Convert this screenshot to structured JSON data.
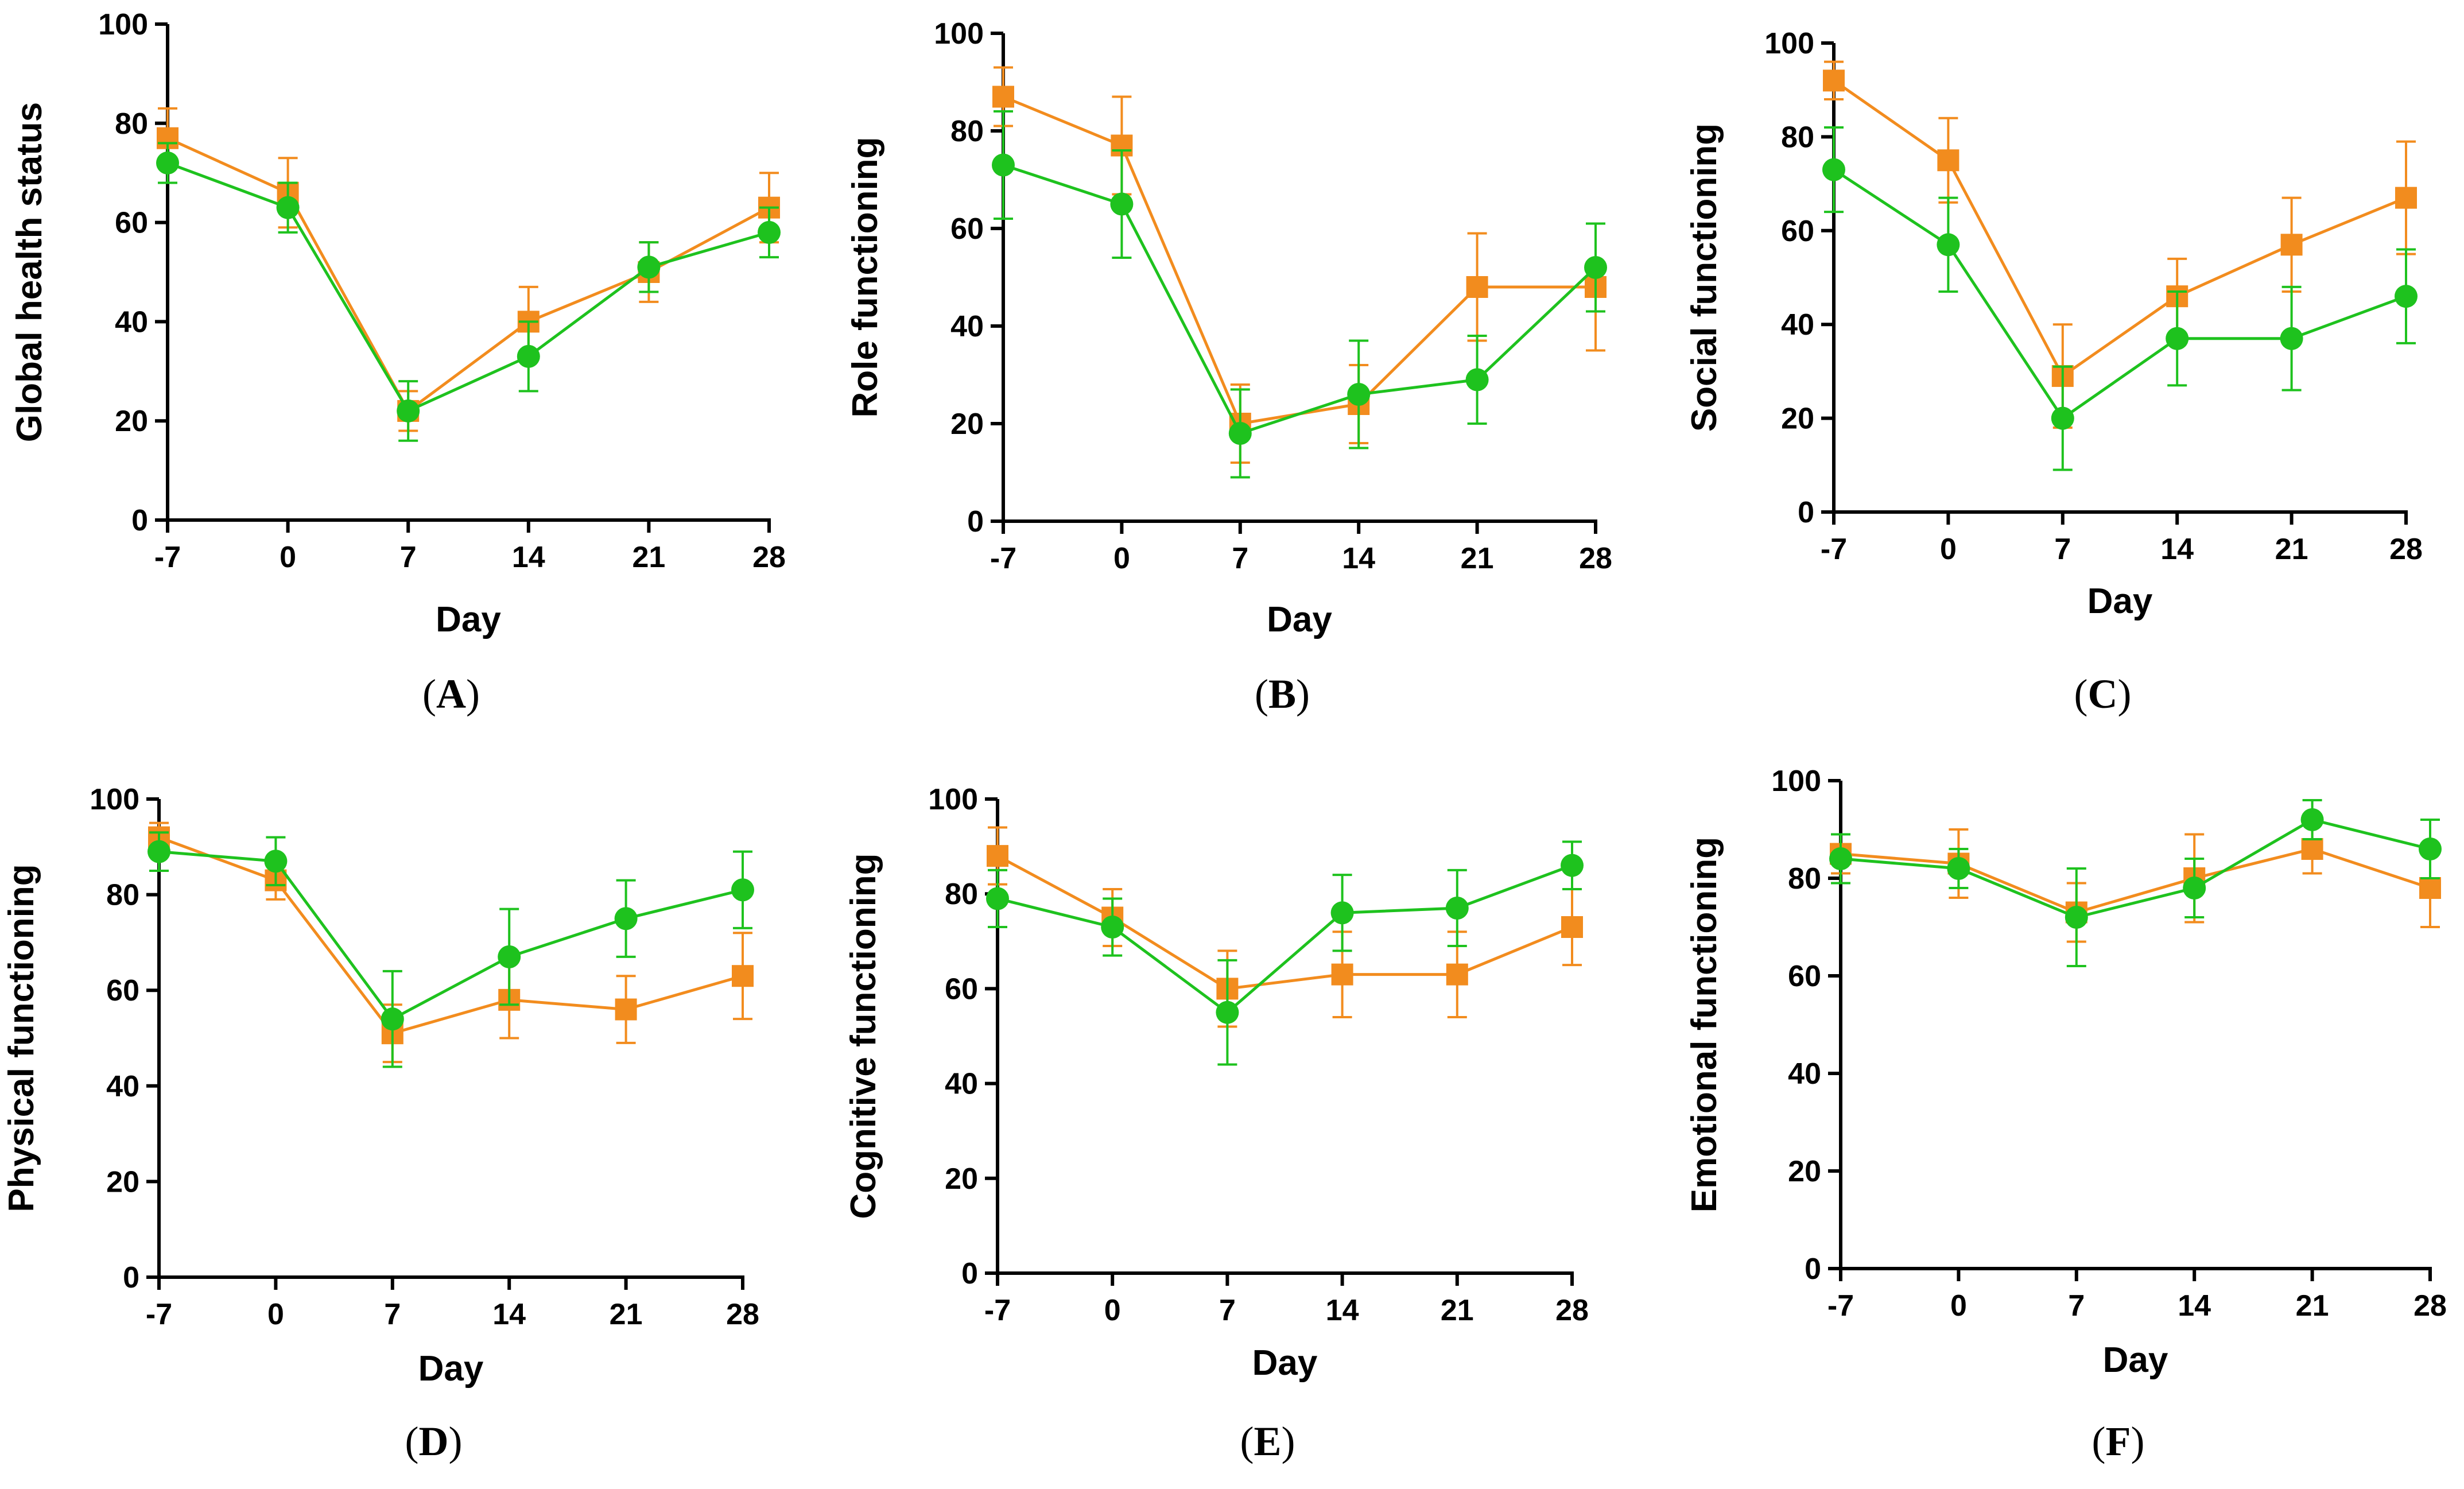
{
  "colors": {
    "orange": "#f28c1e",
    "green": "#1ec21e",
    "axis": "#000000"
  },
  "chart_data": [
    {
      "type": "line",
      "label": "A",
      "xlabel": "Day",
      "ylabel": "Global health status",
      "x": [
        -7,
        0,
        7,
        14,
        21,
        28
      ],
      "xticks": [
        "-7",
        "0",
        "7",
        "14",
        "21",
        "28"
      ],
      "ylim": [
        0,
        100
      ],
      "yticks": [
        "0",
        "20",
        "40",
        "60",
        "80",
        "100"
      ],
      "series": [
        {
          "name": "orange-squares",
          "color": "#f28c1e",
          "marker": "square",
          "values": [
            77,
            66,
            22,
            40,
            50,
            63
          ],
          "errors": [
            6,
            7,
            4,
            7,
            6,
            7
          ]
        },
        {
          "name": "green-circles",
          "color": "#1ec21e",
          "marker": "circle",
          "values": [
            72,
            63,
            22,
            33,
            51,
            58
          ],
          "errors": [
            4,
            5,
            6,
            7,
            5,
            5
          ]
        }
      ]
    },
    {
      "type": "line",
      "label": "B",
      "xlabel": "Day",
      "ylabel": "Role functioning",
      "x": [
        -7,
        0,
        7,
        14,
        21,
        28
      ],
      "xticks": [
        "-7",
        "0",
        "7",
        "14",
        "21",
        "28"
      ],
      "ylim": [
        0,
        100
      ],
      "yticks": [
        "0",
        "20",
        "40",
        "60",
        "80",
        "100"
      ],
      "series": [
        {
          "name": "orange-squares",
          "color": "#f28c1e",
          "marker": "square",
          "values": [
            87,
            77,
            20,
            24,
            48,
            48
          ],
          "errors": [
            6,
            10,
            8,
            8,
            11,
            13
          ]
        },
        {
          "name": "green-circles",
          "color": "#1ec21e",
          "marker": "circle",
          "values": [
            73,
            65,
            18,
            26,
            29,
            52
          ],
          "errors": [
            11,
            11,
            9,
            11,
            9,
            9
          ]
        }
      ]
    },
    {
      "type": "line",
      "label": "C",
      "xlabel": "Day",
      "ylabel": "Social functioning",
      "x": [
        -7,
        0,
        7,
        14,
        21,
        28
      ],
      "xticks": [
        "-7",
        "0",
        "7",
        "14",
        "21",
        "28"
      ],
      "ylim": [
        0,
        100
      ],
      "yticks": [
        "0",
        "20",
        "40",
        "60",
        "80",
        "100"
      ],
      "series": [
        {
          "name": "orange-squares",
          "color": "#f28c1e",
          "marker": "square",
          "values": [
            92,
            75,
            29,
            46,
            57,
            67
          ],
          "errors": [
            4,
            9,
            11,
            8,
            10,
            12
          ]
        },
        {
          "name": "green-circles",
          "color": "#1ec21e",
          "marker": "circle",
          "values": [
            73,
            57,
            20,
            37,
            37,
            46
          ],
          "errors": [
            9,
            10,
            11,
            10,
            11,
            10
          ]
        }
      ]
    },
    {
      "type": "line",
      "label": "D",
      "xlabel": "Day",
      "ylabel": "Physical functioning",
      "x": [
        -7,
        0,
        7,
        14,
        21,
        28
      ],
      "xticks": [
        "-7",
        "0",
        "7",
        "14",
        "21",
        "28"
      ],
      "ylim": [
        0,
        100
      ],
      "yticks": [
        "0",
        "20",
        "40",
        "60",
        "80",
        "100"
      ],
      "series": [
        {
          "name": "orange-squares",
          "color": "#f28c1e",
          "marker": "square",
          "values": [
            92,
            83,
            51,
            58,
            56,
            63
          ],
          "errors": [
            3,
            4,
            6,
            8,
            7,
            9
          ]
        },
        {
          "name": "green-circles",
          "color": "#1ec21e",
          "marker": "circle",
          "values": [
            89,
            87,
            54,
            67,
            75,
            81
          ],
          "errors": [
            4,
            5,
            10,
            10,
            8,
            8
          ]
        }
      ]
    },
    {
      "type": "line",
      "label": "E",
      "xlabel": "Day",
      "ylabel": "Cognitive functioning",
      "x": [
        -7,
        0,
        7,
        14,
        21,
        28
      ],
      "xticks": [
        "-7",
        "0",
        "7",
        "14",
        "21",
        "28"
      ],
      "ylim": [
        0,
        100
      ],
      "yticks": [
        "0",
        "20",
        "40",
        "60",
        "80",
        "100"
      ],
      "series": [
        {
          "name": "orange-squares",
          "color": "#f28c1e",
          "marker": "square",
          "values": [
            88,
            75,
            60,
            63,
            63,
            73
          ],
          "errors": [
            6,
            6,
            8,
            9,
            9,
            8
          ]
        },
        {
          "name": "green-circles",
          "color": "#1ec21e",
          "marker": "circle",
          "values": [
            79,
            73,
            55,
            76,
            77,
            86
          ],
          "errors": [
            6,
            6,
            11,
            8,
            8,
            5
          ]
        }
      ]
    },
    {
      "type": "line",
      "label": "F",
      "xlabel": "Day",
      "ylabel": "Emotional functioning",
      "x": [
        -7,
        0,
        7,
        14,
        21,
        28
      ],
      "xticks": [
        "-7",
        "0",
        "7",
        "14",
        "21",
        "28"
      ],
      "ylim": [
        0,
        100
      ],
      "yticks": [
        "0",
        "20",
        "40",
        "60",
        "80",
        "100"
      ],
      "series": [
        {
          "name": "orange-squares",
          "color": "#f28c1e",
          "marker": "square",
          "values": [
            85,
            83,
            73,
            80,
            86,
            78
          ],
          "errors": [
            4,
            7,
            6,
            9,
            5,
            8
          ]
        },
        {
          "name": "green-circles",
          "color": "#1ec21e",
          "marker": "circle",
          "values": [
            84,
            82,
            72,
            78,
            92,
            86
          ],
          "errors": [
            5,
            4,
            10,
            6,
            4,
            6
          ]
        }
      ]
    }
  ]
}
